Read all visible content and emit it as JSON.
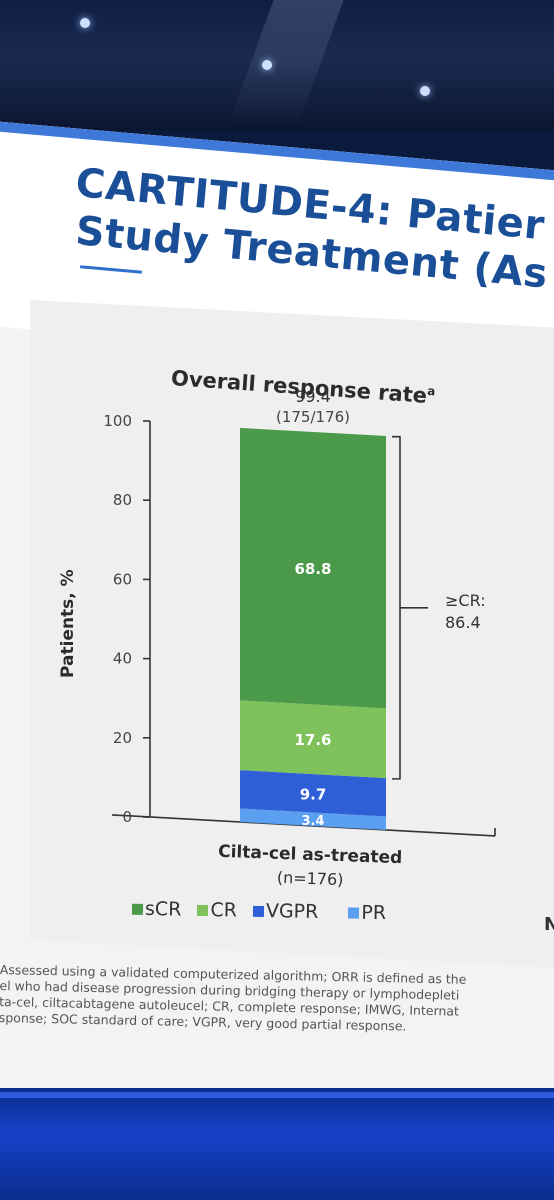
{
  "slide": {
    "title_line1": "CARTITUDE-4: Patier",
    "title_line2": "Study Treatment (As",
    "edge_text": "N"
  },
  "chart_data": {
    "type": "bar",
    "stacked": true,
    "title": "Overall response rate",
    "title_superscript": "a",
    "ylabel": "Patients, %",
    "ylim": [
      0,
      100
    ],
    "yticks": [
      0,
      20,
      40,
      60,
      80,
      100
    ],
    "categories": [
      "Cilta-cel as-treated"
    ],
    "category_sublabel": "(n=176)",
    "series": [
      {
        "name": "PR",
        "values": [
          3.4
        ],
        "color": "#5b9ff0"
      },
      {
        "name": "VGPR",
        "values": [
          9.7
        ],
        "color": "#2f5fd6"
      },
      {
        "name": "CR",
        "values": [
          17.6
        ],
        "color": "#7fc15a"
      },
      {
        "name": "sCR",
        "values": [
          68.8
        ],
        "color": "#4a9a4a"
      }
    ],
    "total_label": "99.4",
    "total_sublabel": "(175/176)",
    "bracket_label_1": "≥CR:",
    "bracket_label_2": "86.4",
    "legend": [
      "sCR",
      "CR",
      "VGPR",
      "PR"
    ],
    "legend_colors": [
      "#4a9a4a",
      "#7fc15a",
      "#2f5fd6",
      "#5b9ff0"
    ]
  },
  "footnote": [
    "Assessed using a validated computerized algorithm; ORR is defined as the",
    "el who had disease progression during bridging therapy or lymphodepleti",
    "ta-cel, ciltacabtagene autoleucel; CR, complete response; IMWG, Internat",
    "sponse; SOC standard of care; VGPR, very good partial response."
  ]
}
